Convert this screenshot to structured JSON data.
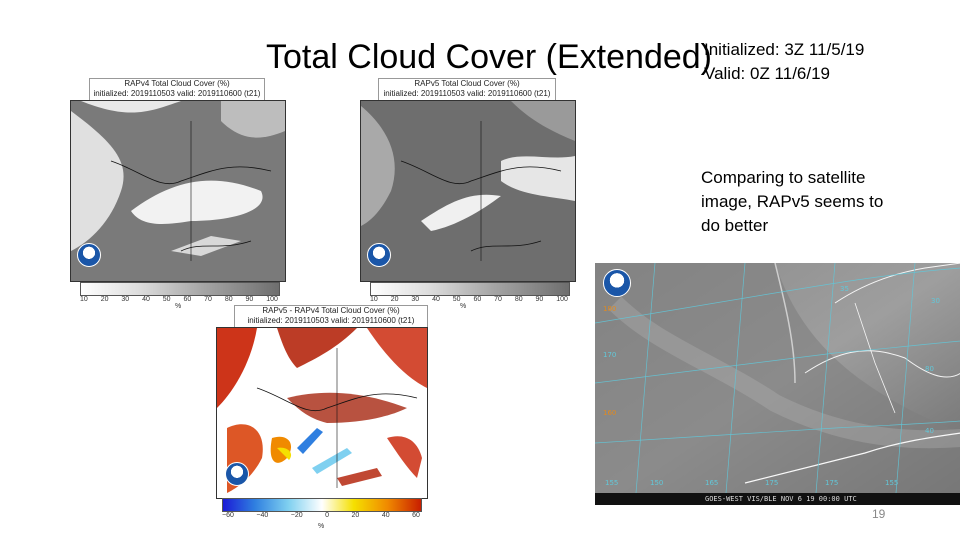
{
  "slide": {
    "title": "Total Cloud Cover (Extended)",
    "initialized": "Initialized: 3Z 11/5/19",
    "valid": "Valid: 0Z 11/6/19",
    "note": "Comparing to satellite image, RAPv5 seems to do better",
    "slide_number": "19"
  },
  "panels": {
    "rapv4": {
      "title": "RAPv4 Total Cloud Cover (%)",
      "subtitle": "initialized: 2019110503 valid: 2019110600 (t21)",
      "ticks": [
        "10",
        "20",
        "30",
        "40",
        "50",
        "60",
        "70",
        "80",
        "90",
        "100"
      ],
      "unit": "%"
    },
    "rapv5": {
      "title": "RAPv5 Total Cloud Cover (%)",
      "subtitle": "initialized: 2019110503 valid: 2019110600 (t21)",
      "ticks": [
        "10",
        "20",
        "30",
        "40",
        "50",
        "60",
        "70",
        "80",
        "90",
        "100"
      ],
      "unit": "%"
    },
    "diff": {
      "title": "RAPv5 - RAPv4 Total Cloud Cover (%)",
      "subtitle": "initialized: 2019110503 valid: 2019110600 (t21)",
      "ticks": [
        "−60",
        "−40",
        "−20",
        "0",
        "20",
        "40",
        "60"
      ],
      "unit": "%"
    }
  },
  "satellite": {
    "bar_text": "GOES-WEST VIS/BLE  NOV 6 19 00:00 UTC",
    "corner_label": "NOAA",
    "lat_labels": [
      "180",
      "170",
      "160",
      "155",
      "150",
      "165",
      "175",
      "175",
      "155",
      "80",
      "40",
      "35",
      "30"
    ]
  },
  "colors": {
    "diff_scale": [
      "#1b1bd6",
      "#2f7fe0",
      "#7fd0f0",
      "#ffffff",
      "#f5e000",
      "#f08a00",
      "#c81e00"
    ],
    "gray_scale": [
      "#ffffff",
      "#e0e0e0",
      "#c0c0c0",
      "#a0a0a0",
      "#808080"
    ]
  }
}
